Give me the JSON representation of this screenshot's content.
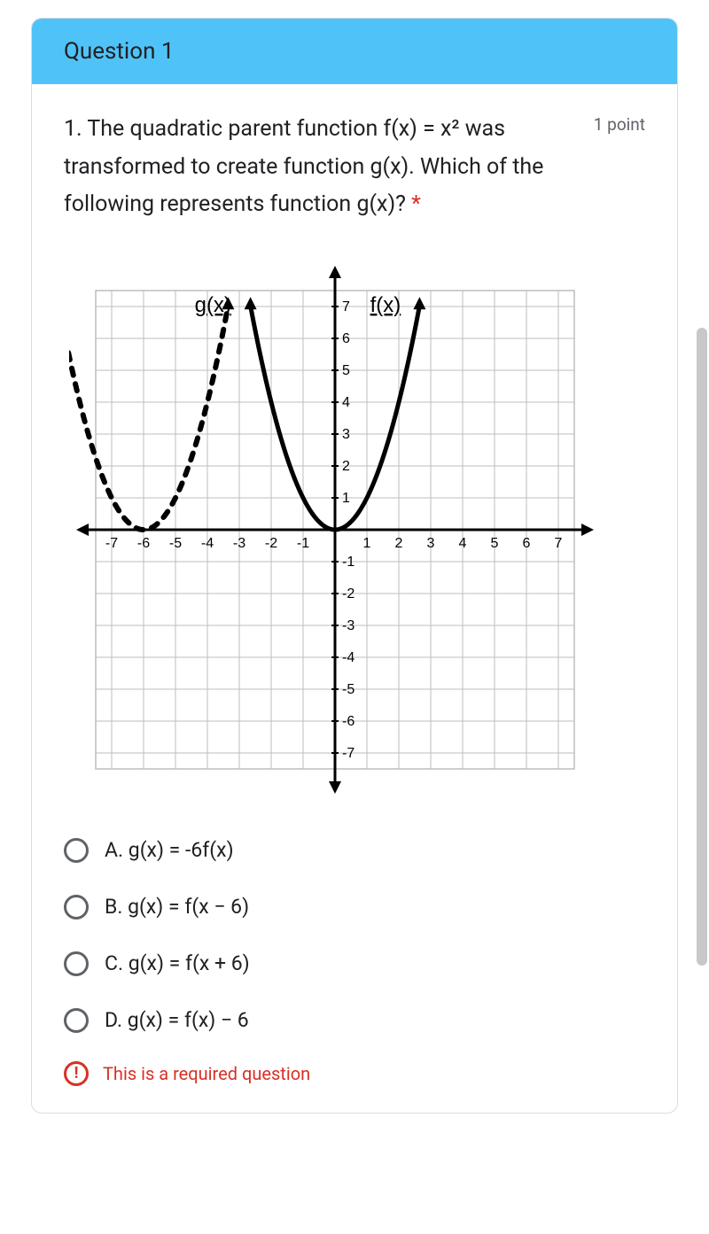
{
  "header": {
    "title": "Question 1"
  },
  "question": {
    "text": "1. The quadratic parent function f(x) = x² was transformed to create function g(x). Which of the following represents function g(x)? ",
    "required_marker": "*",
    "points_label": "1 point"
  },
  "chart": {
    "type": "line",
    "xlim": [
      -7.5,
      7.5
    ],
    "ylim": [
      -7.5,
      7.5
    ],
    "xticks": [
      -7,
      -6,
      -5,
      -4,
      -3,
      -2,
      -1,
      1,
      2,
      3,
      4,
      5,
      6,
      7
    ],
    "yticks": [
      -7,
      -6,
      -5,
      -4,
      -3,
      -2,
      -1,
      1,
      2,
      3,
      4,
      5,
      6,
      7
    ],
    "grid_color": "#bdbdbd",
    "axis_color": "#000000",
    "background_color": "#ffffff",
    "label_fontsize": 18,
    "tick_fontsize": 16,
    "series": [
      {
        "name": "f(x)",
        "label": "f(x)",
        "label_pos": [
          1.1,
          7
        ],
        "color": "#000000",
        "dash": "none",
        "width": 5,
        "formula": "x^2",
        "shift": 0,
        "domain": [
          -2.65,
          2.65
        ]
      },
      {
        "name": "g(x)",
        "label": "g(x)",
        "label_pos": [
          -4.4,
          7
        ],
        "color": "#000000",
        "dash": "8,10",
        "width": 6,
        "formula": "(x+6)^2",
        "shift": -6,
        "domain": [
          -8.65,
          -3.35
        ]
      }
    ]
  },
  "options": [
    {
      "id": "A",
      "label": "A. g(x) = -6f(x)"
    },
    {
      "id": "B",
      "label": "B. g(x) = f(x − 6)"
    },
    {
      "id": "C",
      "label": "C. g(x) = f(x + 6)"
    },
    {
      "id": "D",
      "label": "D. g(x) = f(x) − 6"
    }
  ],
  "error": {
    "icon": "!",
    "text": "This is a required question"
  },
  "colors": {
    "header_bg": "#4fc3f7",
    "error": "#d93025",
    "text": "#202124",
    "muted": "#5f6368"
  }
}
